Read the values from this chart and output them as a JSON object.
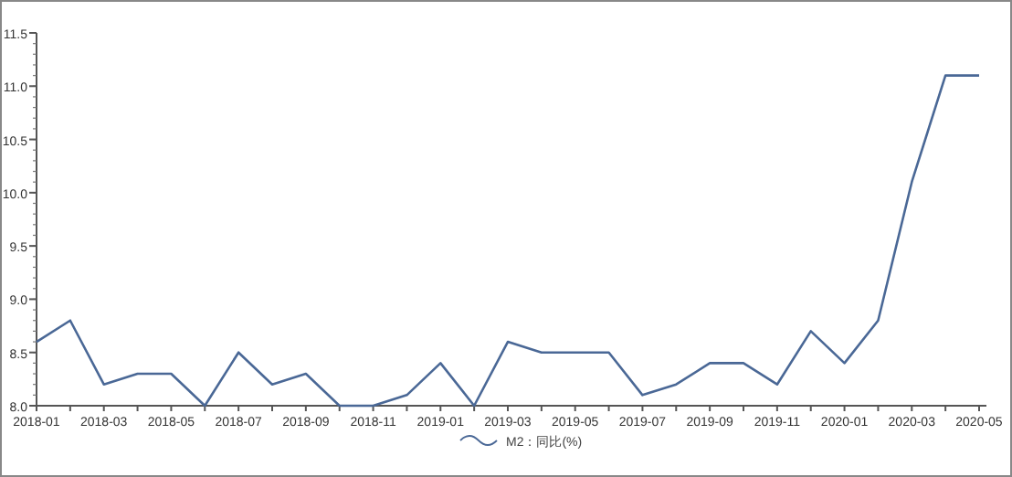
{
  "chart_data": {
    "type": "line",
    "categories": [
      "2018-01",
      null,
      "2018-03",
      null,
      "2018-05",
      null,
      "2018-07",
      null,
      "2018-09",
      null,
      "2018-11",
      null,
      "2019-01",
      null,
      "2019-03",
      null,
      "2019-05",
      null,
      "2019-07",
      null,
      "2019-09",
      null,
      "2019-11",
      null,
      "2020-01",
      null,
      "2020-03",
      null,
      "2020-05"
    ],
    "series": [
      {
        "name": "M2：同比(%)",
        "color": "#4a6896",
        "values": [
          8.6,
          8.8,
          8.2,
          8.3,
          8.3,
          8.0,
          8.5,
          8.2,
          8.3,
          8.0,
          8.0,
          8.1,
          8.4,
          8.0,
          8.6,
          8.5,
          8.5,
          8.5,
          8.1,
          8.2,
          8.4,
          8.4,
          8.2,
          8.7,
          8.4,
          8.8,
          10.1,
          11.1,
          11.1
        ]
      }
    ],
    "ylim": [
      8,
      11.5
    ],
    "yticks": [
      {
        "value": 8,
        "label": "8.0"
      },
      {
        "value": 8.5,
        "label": "8.5"
      },
      {
        "value": 9,
        "label": "9.0"
      },
      {
        "value": 9.5,
        "label": "9.5"
      },
      {
        "value": 10,
        "label": "10.0"
      },
      {
        "value": 10.5,
        "label": "10.5"
      },
      {
        "value": 11,
        "label": "11.0"
      },
      {
        "value": 11.5,
        "label": "11.5"
      }
    ],
    "legend": "bottom",
    "grid": false,
    "marker": "none",
    "line_style": "solid"
  }
}
